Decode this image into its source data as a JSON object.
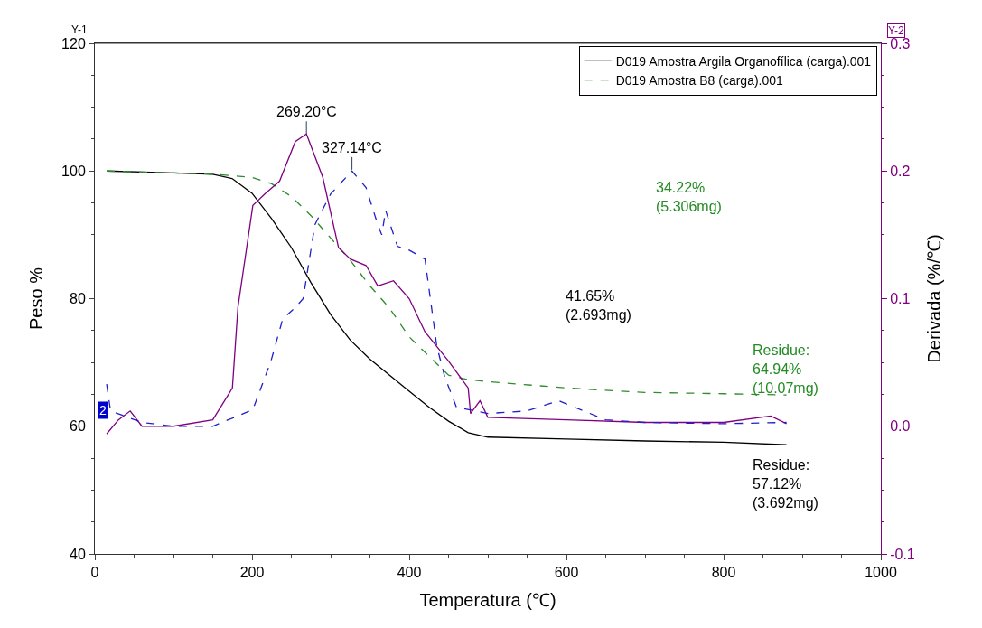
{
  "chart_data": {
    "type": "line",
    "xlabel": "Temperatura (℃)",
    "ylabel": "Peso %",
    "y2label": "Derivada (%/℃)",
    "xlim": [
      0,
      1000
    ],
    "xticks": [
      0,
      200,
      400,
      600,
      800,
      1000
    ],
    "ylim": [
      40,
      120
    ],
    "yticks": [
      40,
      60,
      80,
      100,
      120
    ],
    "y2lim": [
      -0.1,
      0.3
    ],
    "y2ticks": [
      {
        "value": -0.1,
        "label": "-0.1"
      },
      {
        "value": 0,
        "label": "0.0"
      },
      {
        "value": 0.1,
        "label": "0.1"
      },
      {
        "value": 0.2,
        "label": "0.2"
      },
      {
        "value": 0.3,
        "label": "0.3"
      }
    ],
    "legend": "top right",
    "series": [
      {
        "name": "D019 Amostra Argila Organofílica (carga).001",
        "color": "#000000",
        "line_style": "solid",
        "x": [
          15,
          100,
          150,
          175,
          200,
          225,
          250,
          275,
          300,
          325,
          350,
          375,
          400,
          425,
          450,
          475,
          500,
          600,
          700,
          800,
          880
        ],
        "values": [
          100,
          99.7,
          99.5,
          98.8,
          96.5,
          92.5,
          88,
          82.5,
          77.5,
          73.5,
          70.5,
          68,
          65.5,
          63,
          60.8,
          59,
          58.3,
          58,
          57.7,
          57.5,
          57.1
        ]
      },
      {
        "name": "D019 Amostra B8 (carga).001",
        "color": "#2e8b2e",
        "line_style": "dashed",
        "x": [
          15,
          100,
          150,
          200,
          225,
          250,
          275,
          300,
          325,
          350,
          375,
          400,
          425,
          450,
          475,
          500,
          600,
          700,
          800,
          880
        ],
        "values": [
          100,
          99.7,
          99.5,
          99,
          98,
          96,
          93,
          89.5,
          86,
          82,
          78.5,
          74,
          71,
          68,
          67.3,
          67,
          66,
          65.3,
          65.1,
          64.9
        ]
      },
      {
        "color": "#800080",
        "line_style": "solid",
        "axis": "y2",
        "x": [
          15,
          30,
          45,
          60,
          100,
          150,
          175,
          182,
          201,
          218,
          235,
          255,
          269.2,
          290,
          310,
          325,
          345,
          360,
          380,
          400,
          420,
          450,
          475,
          478,
          490,
          500,
          600,
          700,
          800,
          860,
          880
        ],
        "values": [
          -0.006,
          0.005,
          0.012,
          0.0,
          0.0,
          0.005,
          0.03,
          0.093,
          0.173,
          0.183,
          0.192,
          0.223,
          0.229,
          0.195,
          0.14,
          0.131,
          0.126,
          0.11,
          0.114,
          0.1,
          0.074,
          0.051,
          0.03,
          0.01,
          0.02,
          0.007,
          0.005,
          0.003,
          0.003,
          0.008,
          0.002
        ]
      },
      {
        "color": "#2020c8",
        "line_style": "dashed",
        "axis": "y2",
        "x": [
          15,
          20,
          60,
          100,
          150,
          201,
          224,
          239,
          255,
          265,
          280,
          300,
          327.14,
          345,
          360,
          365,
          370,
          385,
          400,
          420,
          435,
          445,
          460,
          500,
          550,
          590,
          650,
          700,
          800,
          880
        ],
        "values": [
          0.033,
          0.012,
          0.003,
          0.0,
          0.0,
          0.013,
          0.051,
          0.084,
          0.093,
          0.1,
          0.158,
          0.182,
          0.2,
          0.187,
          0.158,
          0.15,
          0.169,
          0.141,
          0.138,
          0.131,
          0.063,
          0.039,
          0.015,
          0.01,
          0.012,
          0.02,
          0.005,
          0.003,
          0.002,
          0.003
        ]
      }
    ],
    "annotations": [
      "Y-1",
      "Y-2",
      {
        "text": "269.20°C",
        "x": 269.2,
        "y": 105.8
      },
      {
        "text": "327.14°C",
        "x": 327.14,
        "y": 100.2
      },
      "41.65%\n(2.693mg)",
      "34.22%\n(5.306mg)",
      "Residue:\n64.94%\n(10.07mg)",
      "Residue:\n57.12%\n(3.692mg)",
      {
        "text": "2",
        "x": 10,
        "y": 62.5
      }
    ]
  }
}
